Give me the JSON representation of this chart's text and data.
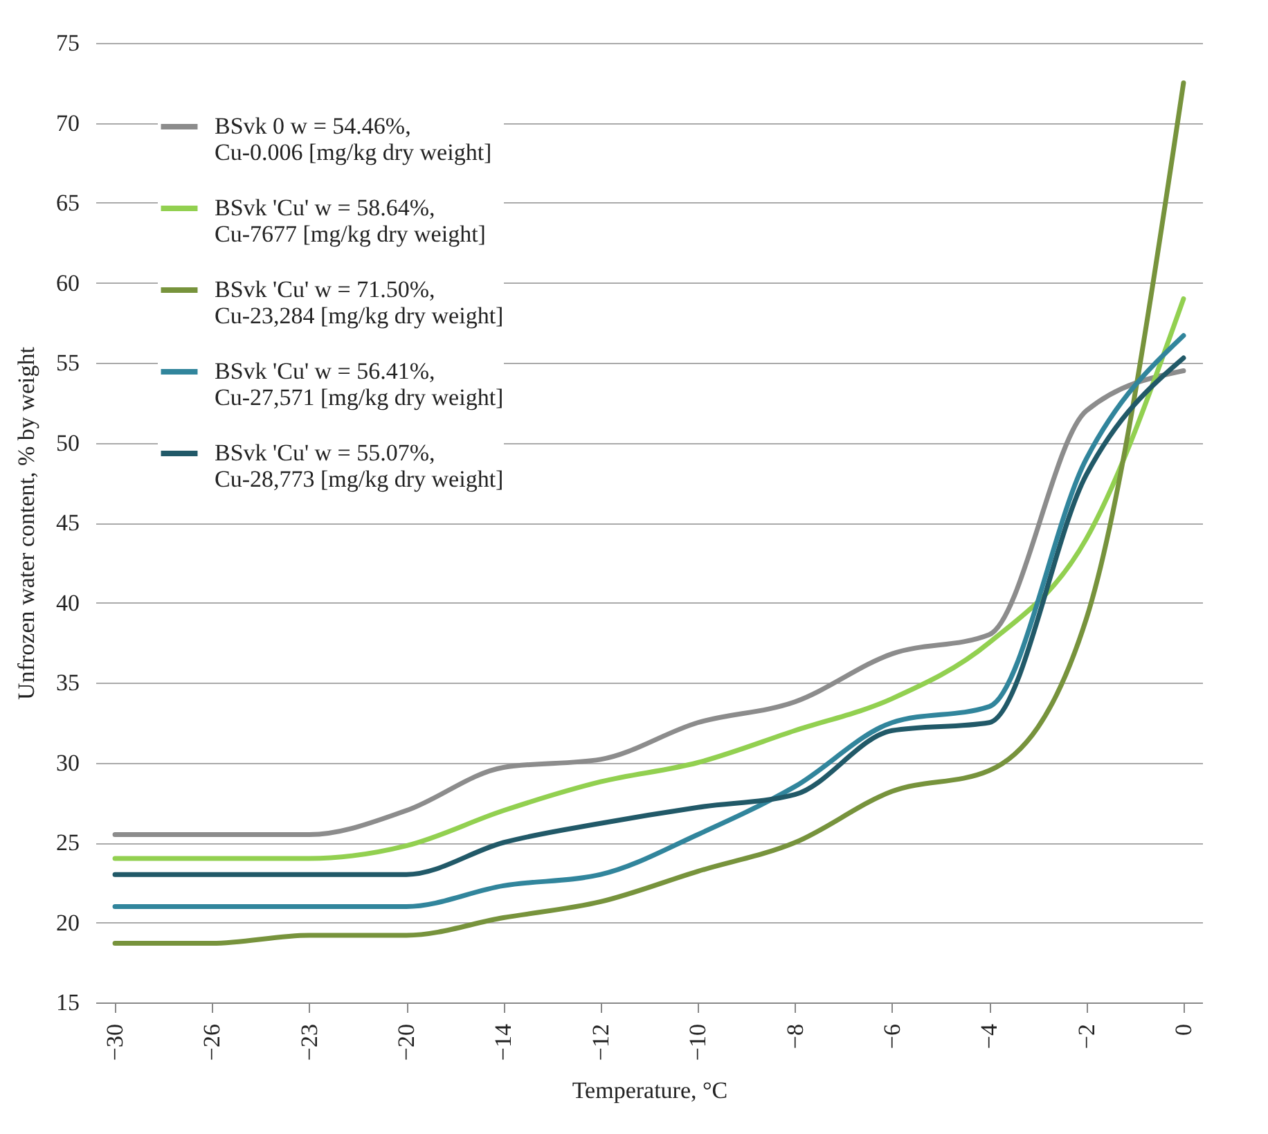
{
  "chart_data": {
    "type": "line",
    "xlabel": "Temperature, °C",
    "ylabel": "Unfrozen water content, % by weight",
    "categories": [
      "−30",
      "−26",
      "−23",
      "−20",
      "−14",
      "−12",
      "−10",
      "−8",
      "−6",
      "−4",
      "−2",
      "0"
    ],
    "series": [
      {
        "name": "BSvk 0  w = 54.46%,\nCu-0.006 [mg/kg dry weight]",
        "color": "#8c8c8c",
        "values": [
          25.5,
          25.5,
          25.5,
          27,
          29.7,
          30.2,
          32.5,
          33.8,
          36.8,
          38,
          52,
          54.5
        ]
      },
      {
        "name": "BSvk 'Cu'  w = 58.64%,\nCu-7677 [mg/kg dry weight]",
        "color": "#92d050",
        "values": [
          24,
          24,
          24,
          24.8,
          27,
          28.8,
          30,
          32,
          34,
          37.5,
          44,
          59
        ]
      },
      {
        "name": "BSvk 'Cu'  w = 71.50%,\nCu-23,284 [mg/kg dry weight]",
        "color": "#77933c",
        "values": [
          18.7,
          18.7,
          19.2,
          19.2,
          20.3,
          21.3,
          23.2,
          25,
          28.2,
          29.5,
          39,
          72.5
        ]
      },
      {
        "name": "BSvk 'Cu'   w = 56.41%,\nCu-27,571 [mg/kg dry weight]",
        "color": "#31859c",
        "values": [
          21,
          21,
          21,
          21,
          22.3,
          23,
          25.5,
          28.5,
          32.5,
          33.5,
          49,
          56.7
        ]
      },
      {
        "name": "BSvk 'Cu'  w = 55.07%,\nCu-28,773 [mg/kg dry weight]",
        "color": "#215968",
        "values": [
          23,
          23,
          23,
          23,
          25,
          26.2,
          27.2,
          28,
          32,
          32.5,
          48,
          55.3
        ]
      }
    ],
    "ylim": [
      15,
      75
    ],
    "yticks": [
      15,
      20,
      25,
      30,
      35,
      40,
      45,
      50,
      55,
      60,
      65,
      70,
      75
    ],
    "grid": "y",
    "legend": "top left",
    "marker": "none",
    "line_style": "solid"
  }
}
